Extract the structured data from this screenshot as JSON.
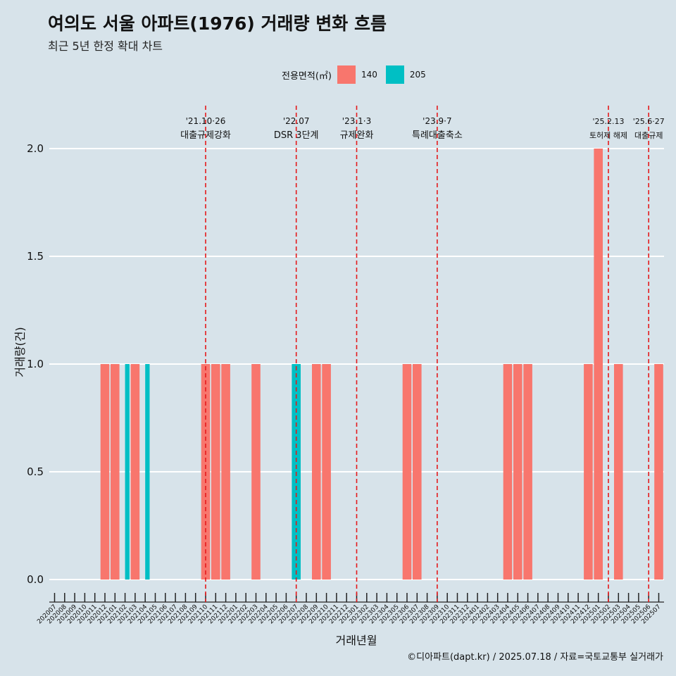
{
  "header": {
    "title": "여의도 서울 아파트(1976) 거래량 변화 흐름",
    "subtitle": "최근 5년 한정 확대 차트"
  },
  "legend": {
    "title": "전용면적(㎡)",
    "items": [
      {
        "label": "140",
        "color": "#f8766d"
      },
      {
        "label": "205",
        "color": "#00bfc4"
      }
    ]
  },
  "caption": "©디아파트(dapt.kr) / 2025.07.18 / 자료=국토교통부 실거래가",
  "chart_data": {
    "type": "bar",
    "title": "여의도 서울 아파트(1976) 거래량 변화 흐름",
    "subtitle": "최근 5년 한정 확대 차트",
    "xlabel": "거래년월",
    "ylabel": "거래량(건)",
    "ylim": [
      0,
      2.0
    ],
    "yticks": [
      "0.0",
      "0.5",
      "1.0",
      "1.5",
      "2.0"
    ],
    "grid": "horizontal",
    "legend_position": "top",
    "categories": [
      "202007",
      "202008",
      "202009",
      "202010",
      "202011",
      "202012",
      "202101",
      "202102",
      "202103",
      "202104",
      "202105",
      "202106",
      "202107",
      "202108",
      "202109",
      "202110",
      "202111",
      "202112",
      "202201",
      "202202",
      "202203",
      "202204",
      "202205",
      "202206",
      "202207",
      "202208",
      "202209",
      "202210",
      "202211",
      "202212",
      "202301",
      "202302",
      "202303",
      "202304",
      "202305",
      "202306",
      "202307",
      "202308",
      "202309",
      "202310",
      "202311",
      "202312",
      "202401",
      "202402",
      "202403",
      "202404",
      "202405",
      "202406",
      "202407",
      "202408",
      "202409",
      "202410",
      "202411",
      "202412",
      "202501",
      "202502",
      "202503",
      "202504",
      "202505",
      "202506",
      "202507"
    ],
    "series": [
      {
        "name": "140",
        "color": "#f8766d",
        "values": [
          0,
          0,
          0,
          0,
          0,
          1,
          1,
          0,
          1,
          0,
          0,
          0,
          0,
          0,
          0,
          1,
          1,
          1,
          0,
          0,
          1,
          0,
          0,
          0,
          0,
          0,
          1,
          1,
          0,
          0,
          0,
          0,
          0,
          0,
          0,
          1,
          1,
          0,
          0,
          0,
          0,
          0,
          0,
          0,
          0,
          1,
          1,
          1,
          0,
          0,
          0,
          0,
          0,
          1,
          2,
          0,
          1,
          0,
          0,
          0,
          1
        ]
      },
      {
        "name": "205",
        "color": "#00bfc4",
        "values": [
          0,
          0,
          0,
          0,
          0,
          0,
          0,
          1,
          0,
          1,
          0,
          0,
          0,
          0,
          0,
          0,
          0,
          0,
          0,
          0,
          0,
          0,
          0,
          0,
          1,
          0,
          0,
          0,
          0,
          0,
          0,
          0,
          0,
          0,
          0,
          0,
          0,
          0,
          0,
          0,
          0,
          0,
          0,
          0,
          0,
          0,
          0,
          0,
          0,
          0,
          0,
          0,
          0,
          0,
          0,
          0,
          0,
          0,
          0,
          0,
          0
        ]
      }
    ],
    "grouped_months": [
      "202102",
      "202104"
    ],
    "annotations": [
      {
        "x": "202110",
        "date": "'21.10·26",
        "text": "대출규제강화"
      },
      {
        "x": "202207",
        "date": "'22.07",
        "text": "DSR 3단계"
      },
      {
        "x": "202301",
        "date": "'23.1·3",
        "text": "규제완화"
      },
      {
        "x": "202309",
        "date": "'23.9·7",
        "text": "특례대출축소"
      },
      {
        "x": "202502",
        "date": "'25.2.13",
        "text": "토허제 해제"
      },
      {
        "x": "202506",
        "date": "'25.6·27",
        "text": "대출규제"
      }
    ]
  }
}
